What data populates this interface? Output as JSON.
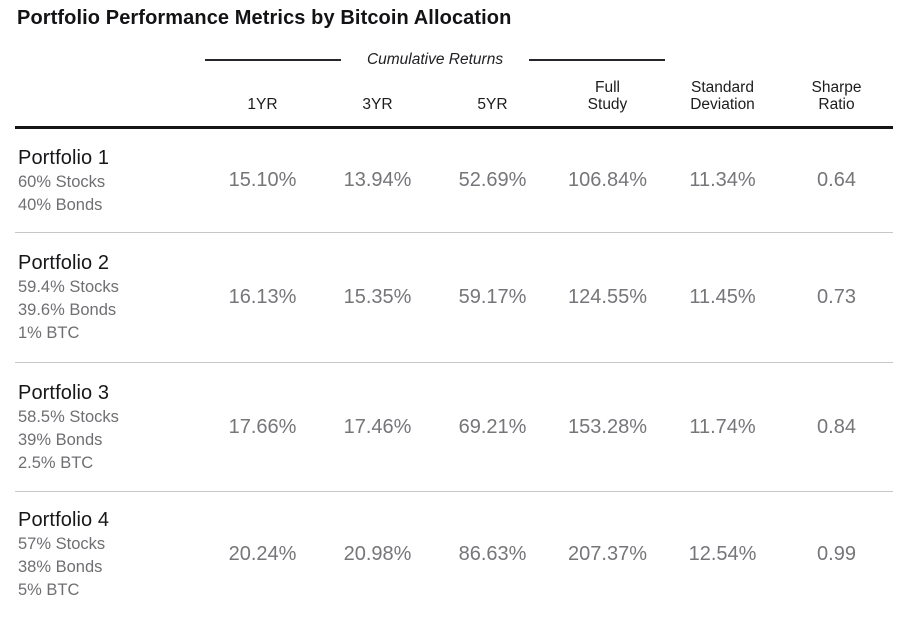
{
  "title": "Portfolio Performance Metrics by Bitcoin Allocation",
  "colors": {
    "heavy_rule": "#151515",
    "light_rule": "#c7c7c7",
    "dark_text": "#17171a",
    "gray_text": "#76767a"
  },
  "chart_data": {
    "type": "table",
    "title": "Portfolio Performance Metrics by Bitcoin Allocation",
    "group_header": {
      "label": "Cumulative Returns",
      "spans_columns": [
        "1YR",
        "3YR",
        "5YR",
        "Full Study"
      ]
    },
    "column_headers": [
      "1YR",
      "3YR",
      "5YR",
      "Full\nStudy",
      "Standard\nDeviation",
      "Sharpe\nRatio"
    ],
    "rows": [
      {
        "name": "Portfolio 1",
        "allocation": [
          "60% Stocks",
          "40% Bonds"
        ],
        "values": [
          "15.10%",
          "13.94%",
          "52.69%",
          "106.84%",
          "11.34%",
          "0.64"
        ]
      },
      {
        "name": "Portfolio 2",
        "allocation": [
          "59.4% Stocks",
          "39.6% Bonds",
          "1% BTC"
        ],
        "values": [
          "16.13%",
          "15.35%",
          "59.17%",
          "124.55%",
          "11.45%",
          "0.73"
        ]
      },
      {
        "name": "Portfolio 3",
        "allocation": [
          "58.5% Stocks",
          "39% Bonds",
          "2.5% BTC"
        ],
        "values": [
          "17.66%",
          "17.46%",
          "69.21%",
          "153.28%",
          "11.74%",
          "0.84"
        ]
      },
      {
        "name": "Portfolio 4",
        "allocation": [
          "57% Stocks",
          "38% Bonds",
          "5% BTC"
        ],
        "values": [
          "20.24%",
          "20.98%",
          "86.63%",
          "207.37%",
          "12.54%",
          "0.99"
        ]
      }
    ]
  }
}
